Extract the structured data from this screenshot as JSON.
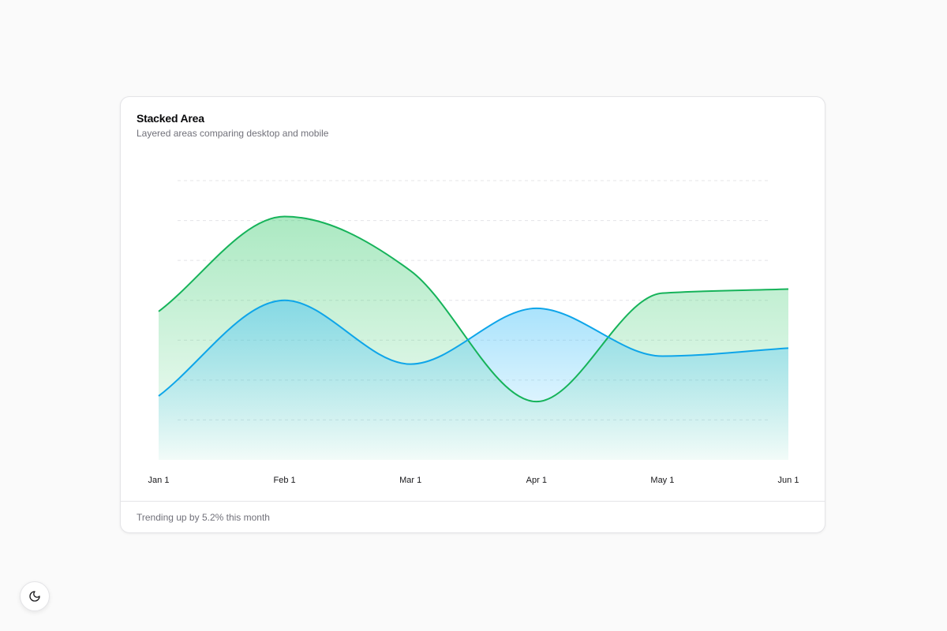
{
  "card": {
    "title": "Stacked Area",
    "subtitle": "Layered areas comparing desktop and mobile",
    "footer": "Trending up by 5.2% this month"
  },
  "theme_toggle": {
    "icon": "moon-icon"
  },
  "colors": {
    "desktop": "#22c55e",
    "desktop_stroke": "#16b35a",
    "mobile": "#38bdf8",
    "mobile_stroke": "#0ea5e9",
    "grid": "#e4e4e7"
  },
  "chart_data": {
    "type": "area",
    "categories": [
      "Jan 1",
      "Feb 1",
      "Mar 1",
      "Apr 1",
      "May 1",
      "Jun 1"
    ],
    "series": [
      {
        "name": "desktop",
        "values": [
          186,
          305,
          237,
          73,
          209,
          214
        ]
      },
      {
        "name": "mobile",
        "values": [
          80,
          200,
          120,
          190,
          130,
          140
        ]
      }
    ],
    "ylim": [
      0,
      350
    ],
    "grid": true,
    "legend": "none",
    "xlabel": "",
    "ylabel": ""
  }
}
